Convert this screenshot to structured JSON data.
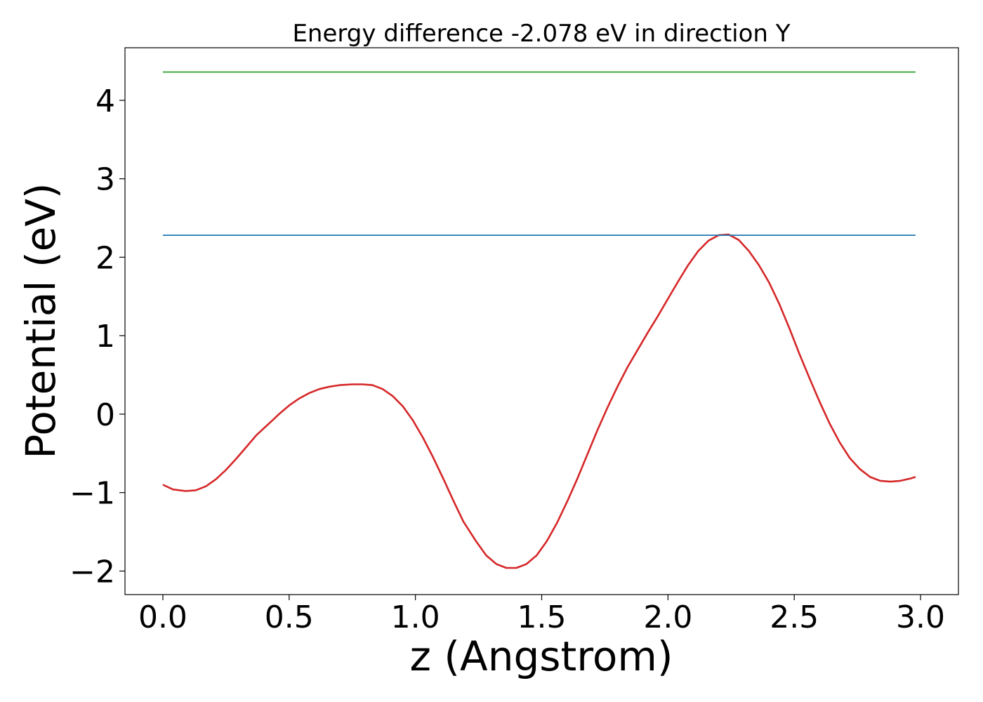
{
  "chart_data": {
    "type": "line",
    "title": "Energy difference -2.078 eV in direction Y",
    "xlabel": "z (Angstrom)",
    "ylabel": "Potential (eV)",
    "xlim": [
      -0.15,
      3.15
    ],
    "ylim": [
      -2.3,
      4.67
    ],
    "x_ticks": [
      0.0,
      0.5,
      1.0,
      1.5,
      2.0,
      2.5,
      3.0
    ],
    "x_tick_labels": [
      "0.0",
      "0.5",
      "1.0",
      "1.5",
      "2.0",
      "2.5",
      "3.0"
    ],
    "y_ticks": [
      -2,
      -1,
      0,
      1,
      2,
      3,
      4
    ],
    "y_tick_labels": [
      "−2",
      "−1",
      "0",
      "1",
      "2",
      "3",
      "4"
    ],
    "grid": false,
    "legend": false,
    "series": [
      {
        "color": "#d62728",
        "x": [
          0.0,
          0.04,
          0.09,
          0.13,
          0.17,
          0.21,
          0.25,
          0.29,
          0.33,
          0.37,
          0.42,
          0.46,
          0.5,
          0.54,
          0.58,
          0.62,
          0.66,
          0.7,
          0.75,
          0.79,
          0.83,
          0.87,
          0.91,
          0.95,
          0.99,
          1.03,
          1.07,
          1.11,
          1.15,
          1.19,
          1.24,
          1.28,
          1.32,
          1.36,
          1.4,
          1.44,
          1.48,
          1.52,
          1.56,
          1.6,
          1.64,
          1.68,
          1.72,
          1.76,
          1.8,
          1.84,
          1.88,
          1.92,
          1.96,
          2.0,
          2.04,
          2.08,
          2.12,
          2.16,
          2.2,
          2.24,
          2.28,
          2.32,
          2.36,
          2.4,
          2.44,
          2.48,
          2.52,
          2.56,
          2.6,
          2.64,
          2.68,
          2.72,
          2.76,
          2.8,
          2.84,
          2.88,
          2.92,
          2.96,
          2.98
        ],
        "y": [
          -0.9,
          -0.96,
          -0.98,
          -0.97,
          -0.92,
          -0.83,
          -0.71,
          -0.57,
          -0.42,
          -0.27,
          -0.12,
          0.0,
          0.11,
          0.2,
          0.27,
          0.32,
          0.35,
          0.37,
          0.38,
          0.38,
          0.37,
          0.32,
          0.23,
          0.1,
          -0.08,
          -0.3,
          -0.55,
          -0.82,
          -1.1,
          -1.37,
          -1.62,
          -1.8,
          -1.91,
          -1.96,
          -1.96,
          -1.91,
          -1.8,
          -1.62,
          -1.39,
          -1.12,
          -0.83,
          -0.52,
          -0.21,
          0.08,
          0.35,
          0.6,
          0.82,
          1.04,
          1.25,
          1.47,
          1.69,
          1.9,
          2.08,
          2.21,
          2.28,
          2.29,
          2.22,
          2.08,
          1.9,
          1.68,
          1.41,
          1.1,
          0.77,
          0.46,
          0.16,
          -0.12,
          -0.36,
          -0.56,
          -0.7,
          -0.8,
          -0.85,
          -0.86,
          -0.85,
          -0.82,
          -0.8
        ]
      },
      {
        "color": "#1f77b4",
        "x": [
          0.0,
          2.98
        ],
        "y": [
          2.28,
          2.28
        ]
      },
      {
        "color": "#2ca02c",
        "x": [
          0.0,
          2.98
        ],
        "y": [
          4.36,
          4.36
        ]
      }
    ]
  }
}
